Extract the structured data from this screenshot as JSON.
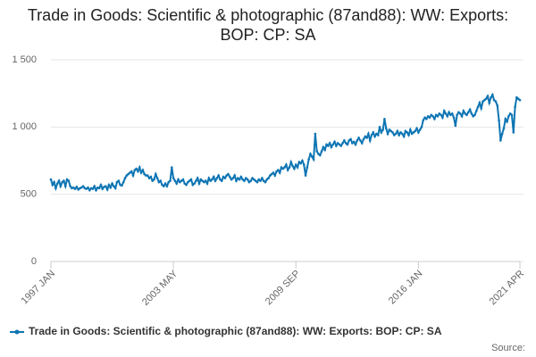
{
  "chart_data": {
    "type": "line",
    "title": "Trade in Goods: Scientific & photographic (87and88): WW: Exports: BOP: CP: SA",
    "source": "Source:",
    "categories": [
      "1997 JAN",
      null,
      null,
      null,
      null,
      null,
      null,
      null,
      null,
      null,
      null,
      null,
      null,
      null,
      null,
      null,
      null,
      null,
      null,
      null,
      null,
      null,
      null,
      null,
      null,
      null,
      null,
      null,
      null,
      null,
      null,
      null,
      null,
      null,
      null,
      null,
      null,
      null,
      null,
      null,
      null,
      null,
      null,
      null,
      null,
      null,
      null,
      null,
      null,
      null,
      null,
      null,
      null,
      null,
      null,
      null,
      null,
      null,
      null,
      null,
      null,
      null,
      null,
      null,
      null,
      null,
      null,
      null,
      null,
      null,
      null,
      null,
      null,
      null,
      null,
      null,
      "2003 MAY",
      null,
      null,
      null,
      null,
      null,
      null,
      null,
      null,
      null,
      null,
      null,
      null,
      null,
      null,
      null,
      null,
      null,
      null,
      null,
      null,
      null,
      null,
      null,
      null,
      null,
      null,
      null,
      null,
      null,
      null,
      null,
      null,
      null,
      null,
      null,
      null,
      null,
      null,
      null,
      null,
      null,
      null,
      null,
      null,
      null,
      null,
      null,
      null,
      null,
      null,
      null,
      null,
      null,
      null,
      null,
      null,
      null,
      null,
      null,
      null,
      null,
      null,
      null,
      null,
      null,
      null,
      null,
      null,
      null,
      null,
      null,
      null,
      null,
      null,
      null,
      "2009 SEP",
      null,
      null,
      null,
      null,
      null,
      null,
      null,
      null,
      null,
      null,
      null,
      null,
      null,
      null,
      null,
      null,
      null,
      null,
      null,
      null,
      null,
      null,
      null,
      null,
      null,
      null,
      null,
      null,
      null,
      null,
      null,
      null,
      null,
      null,
      null,
      null,
      null,
      null,
      null,
      null,
      null,
      null,
      null,
      null,
      null,
      null,
      null,
      null,
      null,
      null,
      null,
      null,
      null,
      null,
      null,
      null,
      null,
      null,
      null,
      null,
      null,
      null,
      null,
      null,
      null,
      null,
      null,
      null,
      null,
      null,
      null,
      null,
      null,
      null,
      null,
      "2016 JAN",
      null,
      null,
      null,
      null,
      null,
      null,
      null,
      null,
      null,
      null,
      null,
      null,
      null,
      null,
      null,
      null,
      null,
      null,
      null,
      null,
      null,
      null,
      null,
      null,
      null,
      null,
      null,
      null,
      null,
      null,
      null,
      null,
      null,
      null,
      null,
      null,
      null,
      null,
      null,
      null,
      null,
      null,
      null,
      null,
      null,
      null,
      null,
      null,
      null,
      null,
      null,
      null,
      null,
      null,
      null,
      null,
      null,
      null,
      null,
      null,
      null,
      null,
      "2021 APR"
    ],
    "series": [
      {
        "name": "Trade in Goods: Scientific & photographic (87and88): WW: Exports: BOP: CP: SA",
        "color": "#0e75b3",
        "values": [
          610,
          570,
          590,
          545,
          580,
          600,
          560,
          590,
          600,
          560,
          610,
          600,
          560,
          545,
          550,
          540,
          555,
          535,
          545,
          550,
          560,
          545,
          540,
          550,
          530,
          545,
          540,
          560,
          530,
          550,
          545,
          570,
          540,
          555,
          560,
          535,
          570,
          550,
          580,
          560,
          545,
          590,
          600,
          570,
          565,
          590,
          620,
          640,
          650,
          660,
          670,
          640,
          680,
          690,
          670,
          700,
          660,
          680,
          650,
          640,
          640,
          620,
          630,
          600,
          610,
          650,
          620,
          590,
          600,
          570,
          560,
          580,
          560,
          590,
          600,
          700,
          620,
          600,
          580,
          610,
          590,
          600,
          610,
          580,
          570,
          590,
          600,
          610,
          570,
          580,
          600,
          620,
          580,
          610,
          600,
          590,
          600,
          580,
          620,
          600,
          610,
          630,
          600,
          620,
          640,
          610,
          600,
          630,
          620,
          640,
          650,
          630,
          610,
          620,
          640,
          600,
          620,
          610,
          630,
          610,
          600,
          620,
          610,
          590,
          600,
          620,
          610,
          600,
          590,
          610,
          600,
          620,
          600,
          590,
          610,
          620,
          640,
          650,
          660,
          640,
          670,
          680,
          660,
          700,
          690,
          700,
          720,
          680,
          700,
          740,
          710,
          690,
          720,
          700,
          740,
          730,
          750,
          720,
          640,
          700,
          760,
          800,
          780,
          760,
          950,
          820,
          800,
          790,
          820,
          850,
          830,
          870,
          860,
          880,
          850,
          870,
          890,
          860,
          880,
          870,
          860,
          880,
          900,
          880,
          870,
          900,
          910,
          880,
          890,
          870,
          900,
          920,
          900,
          880,
          910,
          930,
          920,
          950,
          900,
          940,
          960,
          930,
          950,
          940,
          1000,
          960,
          980,
          1060,
          990,
          950,
          980,
          970,
          960,
          940,
          950,
          970,
          940,
          960,
          950,
          930,
          970,
          960,
          940,
          980,
          950,
          960,
          970,
          990,
          960,
          980,
          1000,
          1050,
          1070,
          1060,
          1080,
          1070,
          1090,
          1080,
          1060,
          1090,
          1080,
          1100,
          1090,
          1070,
          1120,
          1100,
          1080,
          1110,
          1090,
          1100,
          1070,
          1010,
          1090,
          1110,
          1100,
          1080,
          1120,
          1100,
          1090,
          1110,
          1130,
          1100,
          1080,
          1090,
          1120,
          1150,
          1180,
          1140,
          1190,
          1200,
          1210,
          1230,
          1180,
          1220,
          1240,
          1200,
          1190,
          1160,
          1050,
          900,
          950,
          990,
          1060,
          1040,
          1080,
          1100,
          1090,
          960,
          1150,
          1220,
          1210,
          1200
        ]
      }
    ],
    "ylim": [
      0,
      1500
    ],
    "yticks": [
      0,
      500,
      {
        "value": 1000,
        "label": "1 000"
      },
      {
        "value": 1500,
        "label": "1 500"
      }
    ],
    "grid": true
  }
}
